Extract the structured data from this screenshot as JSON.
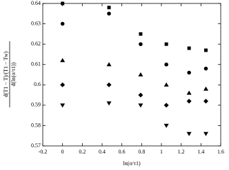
{
  "chart_data": {
    "type": "scatter",
    "xlabel": "ln(σ/τ1)",
    "ylabel": {
      "numerator": "d(T1 − T)/(T1 − Tw)",
      "denominator": "d(ln(σ/τ1))"
    },
    "x": [
      0,
      0.47,
      0.79,
      1.05,
      1.28,
      1.45
    ],
    "series": [
      {
        "marker": "square",
        "color": "#000000",
        "values": [
          0.64,
          0.638,
          0.625,
          0.62,
          0.618,
          0.617
        ]
      },
      {
        "marker": "circle",
        "color": "#000000",
        "values": [
          0.63,
          0.635,
          0.62,
          0.61,
          0.606,
          0.608
        ]
      },
      {
        "marker": "triangle-up",
        "color": "#000000",
        "values": [
          0.612,
          0.61,
          0.605,
          0.6,
          0.596,
          0.598
        ]
      },
      {
        "marker": "diamond",
        "color": "#000000",
        "values": [
          0.6,
          0.6,
          0.595,
          0.59,
          0.592,
          0.592
        ]
      },
      {
        "marker": "triangle-down",
        "color": "#000000",
        "values": [
          0.59,
          0.591,
          0.59,
          0.58,
          0.576,
          0.576
        ]
      }
    ],
    "xlim": [
      -0.2,
      1.6
    ],
    "xticks": [
      -0.2,
      0,
      0.2,
      0.4,
      0.6,
      0.8,
      1,
      1.2,
      1.4,
      1.6
    ],
    "ylim": [
      0.57,
      0.64
    ],
    "yticks": [
      0.57,
      0.58,
      0.59,
      0.6,
      0.61,
      0.62,
      0.63,
      0.64
    ]
  }
}
